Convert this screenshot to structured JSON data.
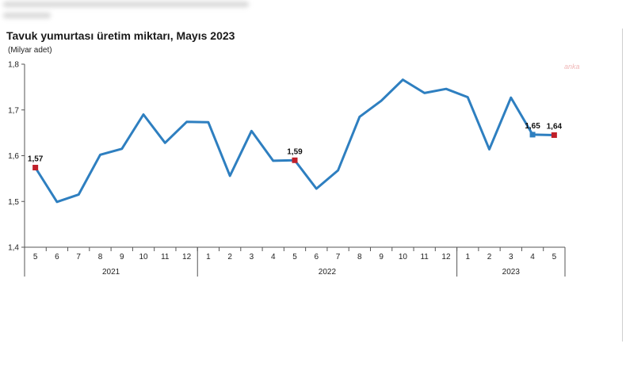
{
  "chart_data": {
    "type": "line",
    "title": "Tavuk yumurtası üretim miktarı, Mayıs 2023",
    "ylabel": "(Milyar adet)",
    "xlabel": "",
    "ylim": [
      1.4,
      1.8
    ],
    "y_ticks": [
      "1,4",
      "1,5",
      "1,6",
      "1,7",
      "1,8"
    ],
    "grid": false,
    "months": [
      "5",
      "6",
      "7",
      "8",
      "9",
      "10",
      "11",
      "12",
      "1",
      "2",
      "3",
      "4",
      "5",
      "6",
      "7",
      "8",
      "9",
      "10",
      "11",
      "12",
      "1",
      "2",
      "3",
      "4",
      "5"
    ],
    "years": [
      {
        "label": "2021",
        "start": 0,
        "end": 7
      },
      {
        "label": "2022",
        "start": 8,
        "end": 19
      },
      {
        "label": "2023",
        "start": 20,
        "end": 24
      }
    ],
    "series": [
      {
        "color": "#2e7fc0",
        "values": [
          1.574,
          1.499,
          1.515,
          1.602,
          1.615,
          1.69,
          1.628,
          1.674,
          1.673,
          1.556,
          1.654,
          1.589,
          1.59,
          1.528,
          1.568,
          1.685,
          1.72,
          1.766,
          1.737,
          1.746,
          1.728,
          1.614,
          1.727,
          1.646,
          1.645
        ]
      }
    ],
    "highlights": [
      {
        "index": 0,
        "label": "1,57",
        "color": "#c0202a"
      },
      {
        "index": 12,
        "label": "1,59",
        "color": "#c0202a"
      },
      {
        "index": 23,
        "label": "1,65",
        "color": "#2e7fc0"
      },
      {
        "index": 24,
        "label": "1,64",
        "color": "#c0202a"
      }
    ]
  },
  "watermark": "anka"
}
